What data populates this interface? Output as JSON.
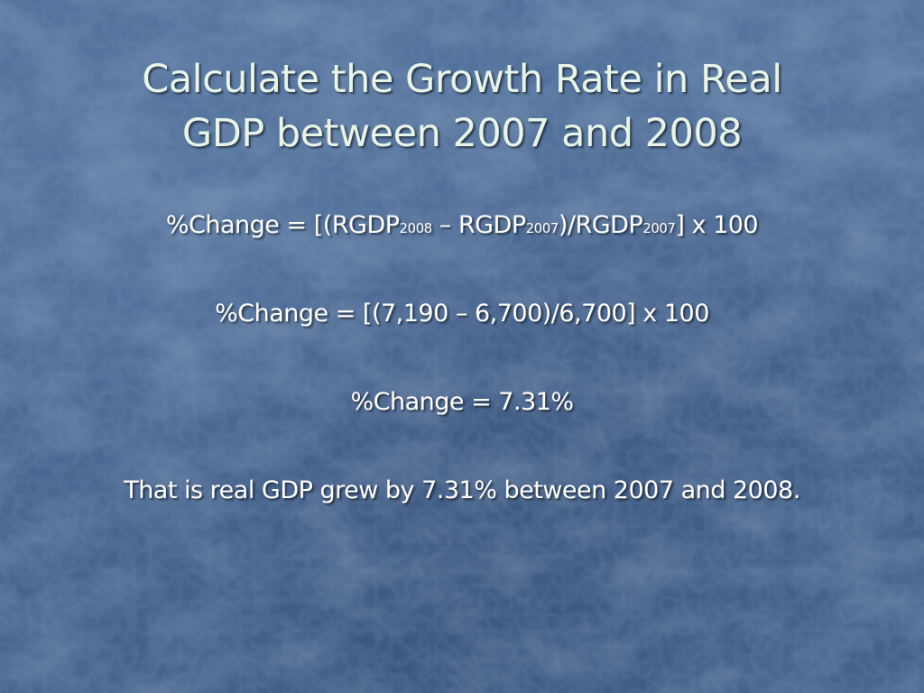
{
  "slide": {
    "title_line1": "Calculate the Growth Rate in Real",
    "title_line2": "GDP between 2007 and 2008",
    "formula": {
      "prefix": "%Change = [(RGDP",
      "sub1": "2008",
      "mid1": " – RGDP",
      "sub2": "2007",
      "mid2": ")/RGDP",
      "sub3": "2007",
      "suffix": "] x 100"
    },
    "substitution": "%Change = [(7,190 – 6,700)/6,700] x 100",
    "result": "%Change = 7.31%",
    "conclusion": "That is real GDP grew by 7.31% between 2007 and 2008."
  },
  "colors": {
    "background": "#4a6a94",
    "title_text": "#e6f4ea",
    "body_text": "#ffffff"
  }
}
